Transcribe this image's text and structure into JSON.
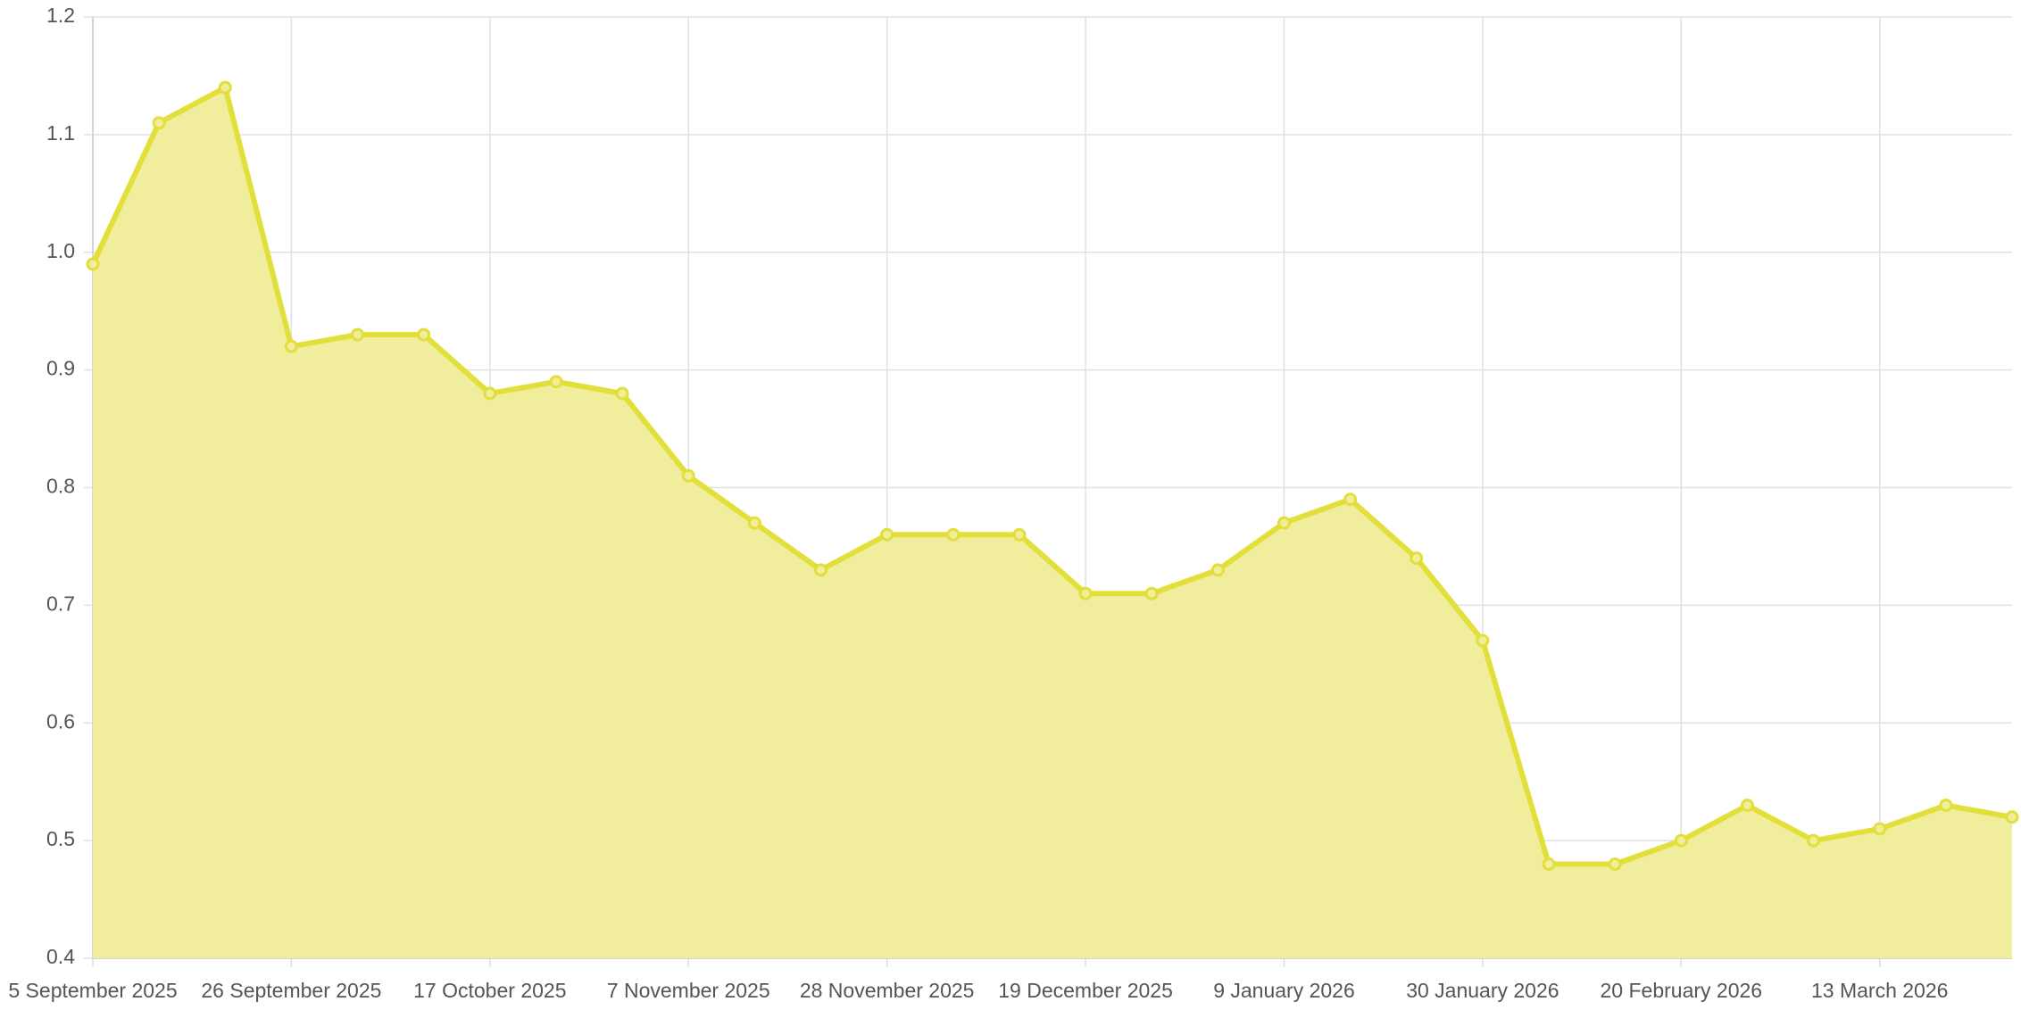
{
  "chart_data": {
    "type": "area",
    "categories": [
      "5 September 2025",
      null,
      null,
      "26 September 2025",
      null,
      null,
      "17 October 2025",
      null,
      null,
      "7 November 2025",
      null,
      null,
      "28 November 2025",
      null,
      null,
      "19 December 2025",
      null,
      null,
      "9 January 2026",
      null,
      null,
      "30 January 2026",
      null,
      null,
      "20 February 2026",
      null,
      null,
      "13 March 2026",
      null,
      null
    ],
    "values": [
      0.99,
      1.11,
      1.14,
      0.92,
      0.93,
      0.93,
      0.88,
      0.89,
      0.88,
      0.81,
      0.77,
      0.73,
      0.76,
      0.76,
      0.76,
      0.71,
      0.71,
      0.73,
      0.77,
      0.79,
      0.74,
      0.67,
      0.48,
      0.48,
      0.5,
      0.53,
      0.5,
      0.51,
      0.53,
      0.52
    ],
    "color": "#e3df3a",
    "fill_color": "#f0ed9d",
    "ylim": [
      0.4,
      1.2
    ],
    "yticks": [
      0.4,
      0.5,
      0.6,
      0.7,
      0.8,
      0.9,
      {
        "value": 1,
        "label": "1.0"
      },
      1.1,
      1.2
    ],
    "grid": true
  }
}
